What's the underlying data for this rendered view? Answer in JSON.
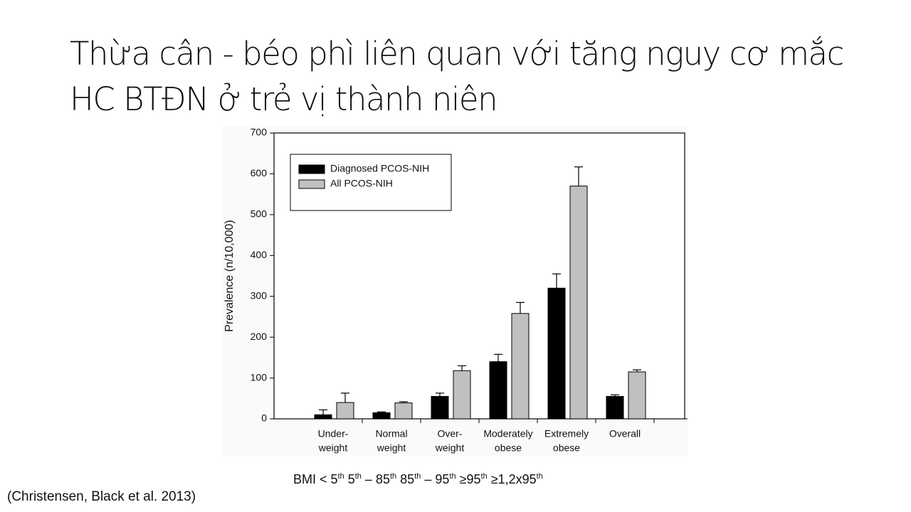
{
  "slide_title": "Thừa cân - béo phì liên quan với tăng nguy cơ mắc HC BTĐN ở trẻ vị thành niên",
  "chart_data": {
    "type": "bar",
    "ylabel": "Prevalence (n/10,000)",
    "categories": [
      [
        "Under-",
        "weight"
      ],
      [
        "Normal",
        "weight"
      ],
      [
        "Over-",
        "weight"
      ],
      [
        "Moderately",
        "obese"
      ],
      [
        "Extremely",
        "obese"
      ],
      [
        "Overall"
      ]
    ],
    "series": [
      {
        "name": "Diagnosed PCOS-NIH",
        "color": "#000000",
        "values": [
          10,
          15,
          55,
          140,
          320,
          55
        ],
        "errors": [
          12,
          2,
          8,
          18,
          35,
          4
        ]
      },
      {
        "name": "All PCOS-NIH",
        "color": "#c0c0c0",
        "values": [
          40,
          39,
          118,
          258,
          570,
          115
        ],
        "errors": [
          23,
          3,
          12,
          27,
          47,
          5
        ]
      }
    ],
    "ylim": [
      0,
      700
    ],
    "yticks": [
      0,
      100,
      200,
      300,
      400,
      500,
      600,
      700
    ],
    "legend": "upper-left"
  },
  "bmi_note": [
    [
      "BMI < 5",
      "th"
    ],
    [
      "5",
      "th"
    ],
    [
      "– 85",
      "th"
    ],
    [
      "85",
      "th"
    ],
    [
      "– 95",
      "th"
    ],
    [
      "≥95",
      "th"
    ],
    [
      "≥1,2x95",
      "th"
    ]
  ],
  "citation": "(Christensen, Black et al. 2013)"
}
